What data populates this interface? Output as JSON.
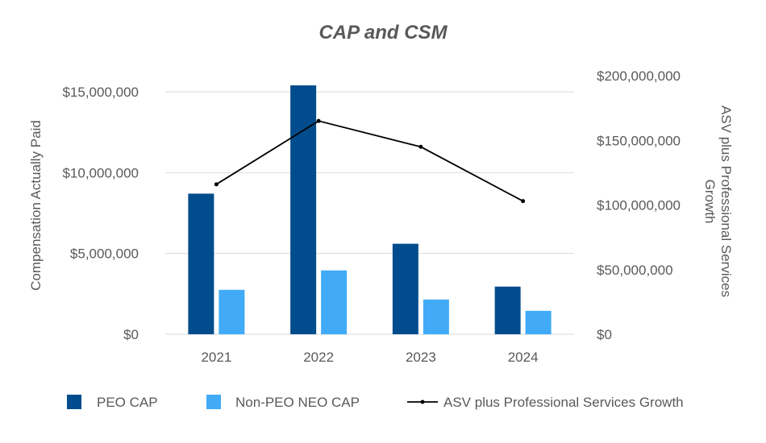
{
  "chart_data": {
    "type": "bar",
    "title": "CAP and CSM",
    "categories": [
      "2021",
      "2022",
      "2023",
      "2024"
    ],
    "ylabel": "Compensation Actually Paid",
    "y2label_lines": [
      "ASV plus Professional Services",
      "Growth"
    ],
    "ylim": [
      0,
      15000000
    ],
    "y2lim": [
      0,
      200000000
    ],
    "yticks": [
      "$0",
      "$5,000,000",
      "$10,000,000",
      "$15,000,000"
    ],
    "y2ticks": [
      "$0",
      "$50,000,000",
      "$100,000,000",
      "$150,000,000",
      "$200,000,000"
    ],
    "grid": true,
    "legend_position": "bottom",
    "series": [
      {
        "name": "PEO CAP",
        "kind": "bar",
        "axis": "left",
        "color": "#004C8C",
        "values": [
          8700000,
          15400000,
          5600000,
          2950000
        ]
      },
      {
        "name": "Non-PEO NEO CAP",
        "kind": "bar",
        "axis": "left",
        "color": "#41ABF7",
        "values": [
          2750000,
          3950000,
          2150000,
          1450000
        ]
      },
      {
        "name": "ASV plus Professional Services Growth",
        "kind": "line",
        "axis": "right",
        "color": "#000000",
        "values": [
          116000000,
          165000000,
          145000000,
          103000000
        ]
      }
    ]
  }
}
